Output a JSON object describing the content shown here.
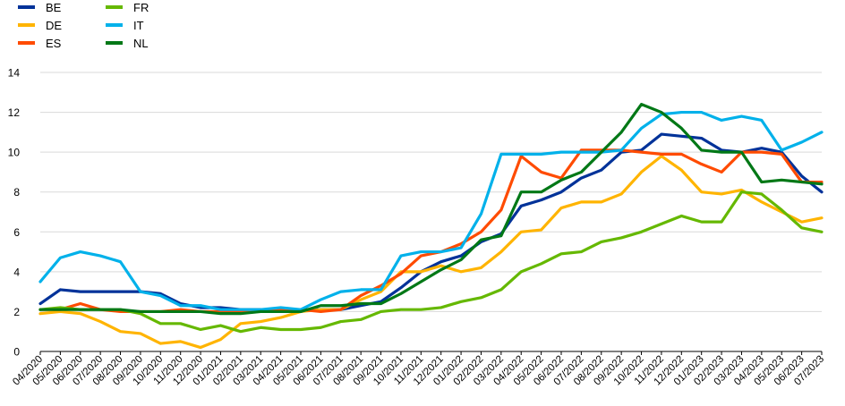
{
  "chart_data": {
    "type": "line",
    "title": "",
    "xlabel": "",
    "ylabel": "",
    "ylim": [
      0,
      14
    ],
    "yticks": [
      0,
      2,
      4,
      6,
      8,
      10,
      12,
      14
    ],
    "grid": "horizontal",
    "legend_position": "top-left",
    "x": [
      "04/2020",
      "05/2020",
      "06/2020",
      "07/2020",
      "08/2020",
      "09/2020",
      "10/2020",
      "11/2020",
      "12/2020",
      "01/2021",
      "02/2021",
      "03/2021",
      "04/2021",
      "05/2021",
      "06/2021",
      "07/2021",
      "08/2021",
      "09/2021",
      "10/2021",
      "11/2021",
      "12/2021",
      "01/2022",
      "02/2022",
      "03/2022",
      "04/2022",
      "05/2022",
      "06/2022",
      "07/2022",
      "08/2022",
      "09/2022",
      "10/2022",
      "11/2022",
      "12/2022",
      "01/2023",
      "02/2023",
      "03/2023",
      "04/2023",
      "05/2023",
      "06/2023",
      "07/2023"
    ],
    "series": [
      {
        "name": "BE",
        "color": "#003299",
        "values": [
          2.4,
          3.1,
          3.0,
          3.0,
          3.0,
          3.0,
          2.9,
          2.4,
          2.2,
          2.2,
          2.1,
          2.1,
          2.1,
          2.1,
          2.1,
          2.1,
          2.3,
          2.5,
          3.2,
          4.0,
          4.5,
          4.8,
          5.5,
          5.9,
          7.3,
          7.6,
          8.0,
          8.7,
          9.1,
          10.0,
          10.1,
          10.9,
          10.8,
          10.7,
          10.1,
          10.0,
          10.2,
          10.0,
          8.8,
          8.0
        ]
      },
      {
        "name": "DE",
        "color": "#FFB400",
        "values": [
          1.9,
          2.0,
          1.9,
          1.5,
          1.0,
          0.9,
          0.4,
          0.5,
          0.2,
          0.6,
          1.4,
          1.5,
          1.7,
          2.0,
          2.1,
          2.1,
          2.6,
          3.0,
          4.0,
          4.0,
          4.3,
          4.0,
          4.2,
          5.0,
          6.0,
          6.1,
          7.2,
          7.5,
          7.5,
          7.9,
          9.0,
          9.8,
          9.1,
          8.0,
          7.9,
          8.1,
          7.5,
          7.0,
          6.5,
          6.7
        ]
      },
      {
        "name": "ES",
        "color": "#FF4B00",
        "values": [
          2.1,
          2.1,
          2.4,
          2.1,
          2.0,
          2.0,
          2.0,
          2.1,
          2.0,
          2.0,
          2.0,
          2.0,
          2.1,
          2.1,
          2.0,
          2.1,
          2.8,
          3.3,
          3.9,
          4.8,
          5.0,
          5.4,
          6.0,
          7.1,
          9.8,
          9.0,
          8.7,
          10.1,
          10.1,
          10.1,
          10.0,
          9.9,
          9.9,
          9.4,
          9.0,
          10.0,
          10.0,
          9.9,
          8.5,
          8.5
        ]
      },
      {
        "name": "FR",
        "color": "#65B800",
        "values": [
          2.1,
          2.2,
          2.1,
          2.1,
          2.1,
          1.9,
          1.4,
          1.4,
          1.1,
          1.3,
          1.0,
          1.2,
          1.1,
          1.1,
          1.2,
          1.5,
          1.6,
          2.0,
          2.1,
          2.1,
          2.2,
          2.5,
          2.7,
          3.1,
          4.0,
          4.4,
          4.9,
          5.0,
          5.5,
          5.7,
          6.0,
          6.4,
          6.8,
          6.5,
          6.5,
          8.0,
          7.9,
          7.1,
          6.2,
          6.0
        ]
      },
      {
        "name": "IT",
        "color": "#00B1EA",
        "values": [
          3.5,
          4.7,
          5.0,
          4.8,
          4.5,
          3.0,
          2.8,
          2.3,
          2.3,
          2.1,
          2.1,
          2.1,
          2.2,
          2.1,
          2.6,
          3.0,
          3.1,
          3.1,
          4.8,
          5.0,
          5.0,
          5.2,
          6.9,
          9.9,
          9.9,
          9.9,
          10.0,
          10.0,
          10.0,
          10.1,
          11.2,
          11.9,
          12.0,
          12.0,
          11.6,
          11.8,
          11.6,
          10.1,
          10.5,
          11.0
        ]
      },
      {
        "name": "NL",
        "color": "#007816",
        "values": [
          2.1,
          2.1,
          2.1,
          2.1,
          2.1,
          2.0,
          2.0,
          2.0,
          2.0,
          1.9,
          1.9,
          2.0,
          2.0,
          2.0,
          2.3,
          2.3,
          2.4,
          2.4,
          2.9,
          3.5,
          4.1,
          4.6,
          5.6,
          5.8,
          8.0,
          8.0,
          8.6,
          9.0,
          10.0,
          11.0,
          12.4,
          12.0,
          11.2,
          10.1,
          10.0,
          10.0,
          8.5,
          8.6,
          8.5,
          8.4
        ]
      }
    ]
  }
}
